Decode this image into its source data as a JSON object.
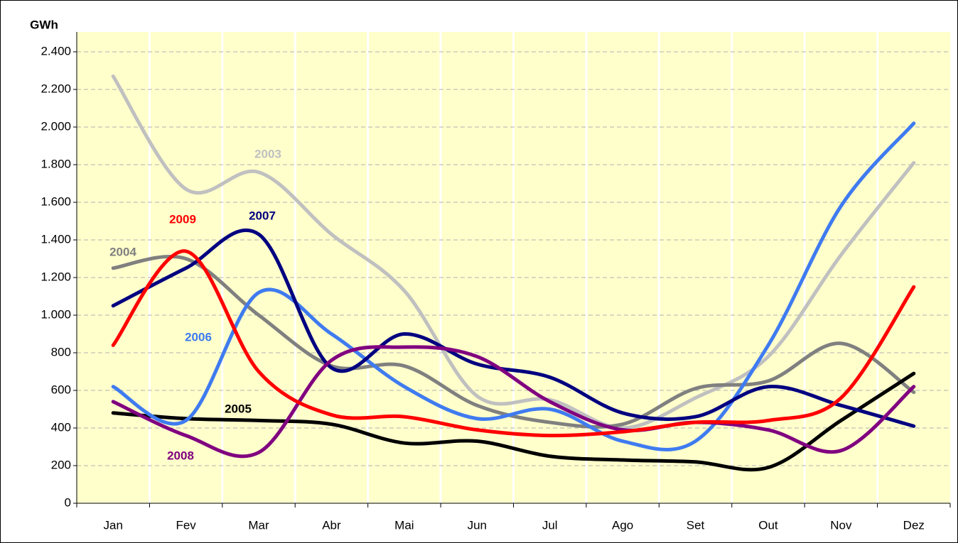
{
  "chart_data": {
    "type": "line",
    "y_label": "GWh",
    "categories": [
      "Jan",
      "Fev",
      "Mar",
      "Abr",
      "Mai",
      "Jun",
      "Jul",
      "Ago",
      "Set",
      "Out",
      "Nov",
      "Dez"
    ],
    "ylim": [
      0,
      2400
    ],
    "yticks": [
      0,
      200,
      400,
      600,
      800,
      {
        "value": 1000,
        "label": "1.000"
      },
      {
        "value": 1200,
        "label": "1.200"
      },
      {
        "value": 1400,
        "label": "1.400"
      },
      {
        "value": 1600,
        "label": "1.600"
      },
      {
        "value": 1800,
        "label": "1.800"
      },
      {
        "value": 2000,
        "label": "2.000"
      },
      {
        "value": 2200,
        "label": "2.200"
      },
      {
        "value": 2400,
        "label": "2.400"
      }
    ],
    "grid": true,
    "smooth": true,
    "series": [
      {
        "name": "2003",
        "color": "#c0c0c0",
        "values": [
          2270,
          1670,
          1760,
          1430,
          1130,
          570,
          550,
          400,
          560,
          780,
          1320,
          1810
        ]
      },
      {
        "name": "2004",
        "color": "#808080",
        "values": [
          1250,
          1300,
          1000,
          730,
          730,
          520,
          430,
          420,
          610,
          650,
          850,
          590
        ]
      },
      {
        "name": "2005",
        "color": "#000000",
        "values": [
          480,
          450,
          440,
          420,
          320,
          330,
          250,
          230,
          220,
          190,
          440,
          690
        ]
      },
      {
        "name": "2006",
        "color": "#3f7bf0",
        "values": [
          620,
          440,
          1120,
          900,
          620,
          450,
          500,
          330,
          330,
          840,
          1580,
          2020
        ]
      },
      {
        "name": "2007",
        "color": "#000080",
        "values": [
          1050,
          1250,
          1430,
          720,
          900,
          740,
          670,
          480,
          460,
          620,
          520,
          410
        ]
      },
      {
        "name": "2008",
        "color": "#800080",
        "values": [
          540,
          360,
          270,
          760,
          830,
          780,
          540,
          390,
          430,
          390,
          280,
          620
        ]
      },
      {
        "name": "2009",
        "color": "#ff0000",
        "values": [
          840,
          1340,
          700,
          470,
          460,
          390,
          360,
          380,
          430,
          440,
          560,
          1150
        ]
      }
    ]
  }
}
